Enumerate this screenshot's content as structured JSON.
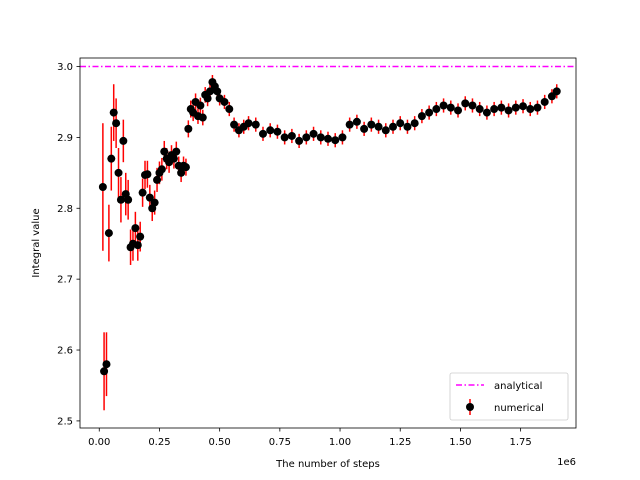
{
  "chart_data": {
    "type": "scatter",
    "xlabel": "The number of steps",
    "ylabel": "Integral value",
    "x_offset_label": "1e6",
    "xlim": [
      -0.08,
      1.98
    ],
    "ylim": [
      2.49,
      3.012
    ],
    "x_ticks": [
      0.0,
      0.25,
      0.5,
      0.75,
      1.0,
      1.25,
      1.5,
      1.75
    ],
    "x_tick_labels": [
      "0.00",
      "0.25",
      "0.50",
      "0.75",
      "1.00",
      "1.25",
      "1.50",
      "1.75"
    ],
    "y_ticks": [
      2.5,
      2.6,
      2.7,
      2.8,
      2.9,
      3.0
    ],
    "y_tick_labels": [
      "2.5",
      "2.6",
      "2.7",
      "2.8",
      "2.9",
      "3.0"
    ],
    "legend_position": "lower-right",
    "colors": {
      "analytical": "#ff00ff",
      "numerical_marker": "#000000",
      "numerical_error": "#ff0000"
    },
    "series": [
      {
        "name": "analytical",
        "style": "dash-dot line",
        "y": 3.0
      },
      {
        "name": "numerical",
        "style": "markers with error bars",
        "x": [
          0.015,
          0.02,
          0.03,
          0.04,
          0.05,
          0.06,
          0.07,
          0.08,
          0.09,
          0.1,
          0.11,
          0.12,
          0.13,
          0.14,
          0.15,
          0.16,
          0.17,
          0.18,
          0.19,
          0.2,
          0.21,
          0.22,
          0.23,
          0.24,
          0.25,
          0.26,
          0.27,
          0.28,
          0.29,
          0.3,
          0.31,
          0.32,
          0.33,
          0.34,
          0.35,
          0.36,
          0.37,
          0.38,
          0.39,
          0.4,
          0.41,
          0.42,
          0.43,
          0.44,
          0.45,
          0.46,
          0.47,
          0.48,
          0.49,
          0.5,
          0.52,
          0.54,
          0.56,
          0.58,
          0.6,
          0.62,
          0.65,
          0.68,
          0.71,
          0.74,
          0.77,
          0.8,
          0.83,
          0.86,
          0.89,
          0.92,
          0.95,
          0.98,
          1.01,
          1.04,
          1.07,
          1.1,
          1.13,
          1.16,
          1.19,
          1.22,
          1.25,
          1.28,
          1.31,
          1.34,
          1.37,
          1.4,
          1.43,
          1.46,
          1.49,
          1.52,
          1.55,
          1.58,
          1.61,
          1.64,
          1.67,
          1.7,
          1.73,
          1.76,
          1.79,
          1.82,
          1.85,
          1.88,
          1.9
        ],
        "y": [
          2.83,
          2.57,
          2.58,
          2.765,
          2.87,
          2.935,
          2.92,
          2.85,
          2.812,
          2.895,
          2.82,
          2.812,
          2.745,
          2.75,
          2.772,
          2.748,
          2.76,
          2.822,
          2.847,
          2.848,
          2.815,
          2.8,
          2.808,
          2.84,
          2.85,
          2.855,
          2.88,
          2.87,
          2.865,
          2.875,
          2.87,
          2.88,
          2.86,
          2.85,
          2.86,
          2.858,
          2.912,
          2.94,
          2.935,
          2.95,
          2.93,
          2.945,
          2.928,
          2.96,
          2.955,
          2.965,
          2.978,
          2.972,
          2.965,
          2.955,
          2.95,
          2.94,
          2.918,
          2.91,
          2.915,
          2.92,
          2.918,
          2.905,
          2.91,
          2.908,
          2.9,
          2.902,
          2.895,
          2.9,
          2.905,
          2.9,
          2.898,
          2.896,
          2.9,
          2.918,
          2.922,
          2.912,
          2.918,
          2.915,
          2.91,
          2.915,
          2.92,
          2.915,
          2.92,
          2.93,
          2.935,
          2.94,
          2.945,
          2.942,
          2.938,
          2.948,
          2.945,
          2.94,
          2.935,
          2.94,
          2.942,
          2.938,
          2.942,
          2.944,
          2.94,
          2.942,
          2.95,
          2.958,
          2.965
        ],
        "err": [
          0.09,
          0.055,
          0.045,
          0.04,
          0.045,
          0.04,
          0.035,
          0.035,
          0.032,
          0.03,
          0.03,
          0.028,
          0.025,
          0.024,
          0.023,
          0.022,
          0.021,
          0.02,
          0.02,
          0.019,
          0.018,
          0.018,
          0.017,
          0.017,
          0.016,
          0.016,
          0.015,
          0.015,
          0.015,
          0.014,
          0.014,
          0.014,
          0.013,
          0.013,
          0.013,
          0.012,
          0.012,
          0.012,
          0.012,
          0.012,
          0.011,
          0.011,
          0.011,
          0.011,
          0.011,
          0.011,
          0.01,
          0.01,
          0.01,
          0.01,
          0.01,
          0.01,
          0.01,
          0.01,
          0.01,
          0.01,
          0.01,
          0.01,
          0.01,
          0.01,
          0.01,
          0.01,
          0.01,
          0.01,
          0.01,
          0.01,
          0.01,
          0.01,
          0.01,
          0.01,
          0.01,
          0.01,
          0.01,
          0.01,
          0.01,
          0.01,
          0.01,
          0.01,
          0.01,
          0.01,
          0.01,
          0.01,
          0.01,
          0.01,
          0.01,
          0.01,
          0.01,
          0.01,
          0.01,
          0.01,
          0.01,
          0.01,
          0.01,
          0.01,
          0.01,
          0.01,
          0.01,
          0.01,
          0.01
        ]
      }
    ]
  }
}
